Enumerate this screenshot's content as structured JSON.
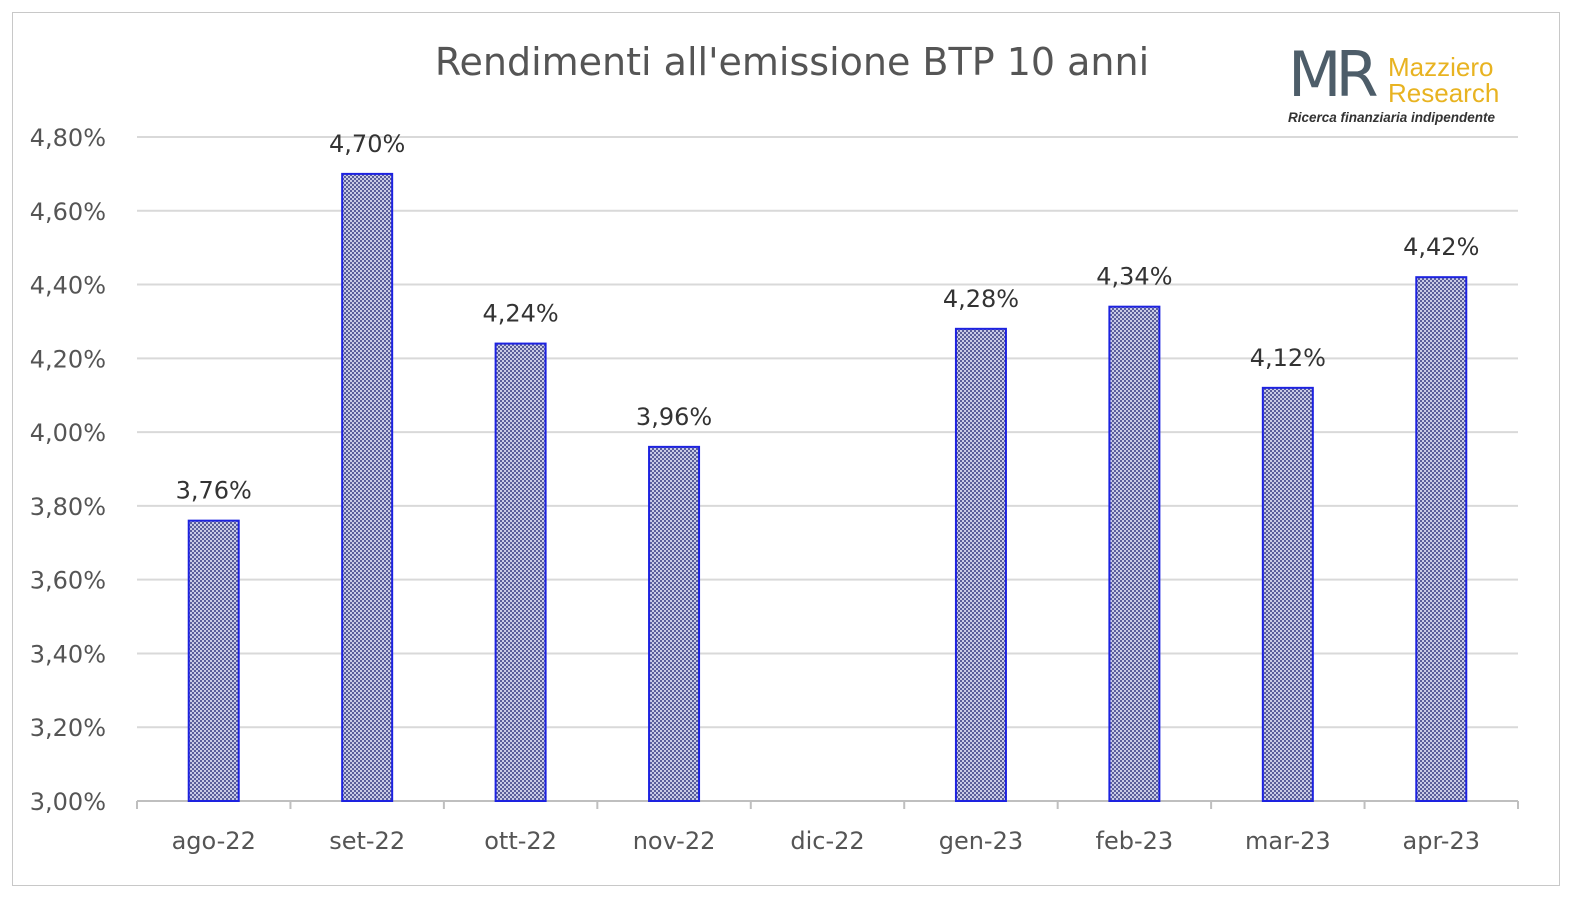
{
  "chart_data": {
    "type": "bar",
    "title": "Rendimenti all'emissione BTP 10 anni",
    "xlabel": "",
    "ylabel": "",
    "categories": [
      "ago-22",
      "set-22",
      "ott-22",
      "nov-22",
      "dic-22",
      "gen-23",
      "feb-23",
      "mar-23",
      "apr-23"
    ],
    "series": [
      {
        "values": [
          3.76,
          4.7,
          4.24,
          3.96,
          null,
          4.28,
          4.34,
          4.12,
          4.42
        ]
      }
    ],
    "data_labels": [
      "3,76%",
      "4,70%",
      "4,24%",
      "3,96%",
      "",
      "4,28%",
      "4,34%",
      "4,12%",
      "4,42%"
    ],
    "ylim": [
      3.0,
      4.8
    ],
    "yticks": [
      3.0,
      3.2,
      3.4,
      3.6,
      3.8,
      4.0,
      4.2,
      4.4,
      4.6,
      4.8
    ],
    "ytick_labels": [
      "3,00%",
      "3,20%",
      "3,40%",
      "3,60%",
      "3,80%",
      "4,00%",
      "4,20%",
      "4,40%",
      "4,60%",
      "4,80%"
    ],
    "grid": true,
    "legend": "none",
    "bar_fill": "#8f93c8",
    "bar_border": "#1d22e0"
  },
  "logo": {
    "mark": "MR",
    "brand_line1": "Mazziero",
    "brand_line2": "Research",
    "tagline": "Ricerca finanziaria indipendente"
  }
}
